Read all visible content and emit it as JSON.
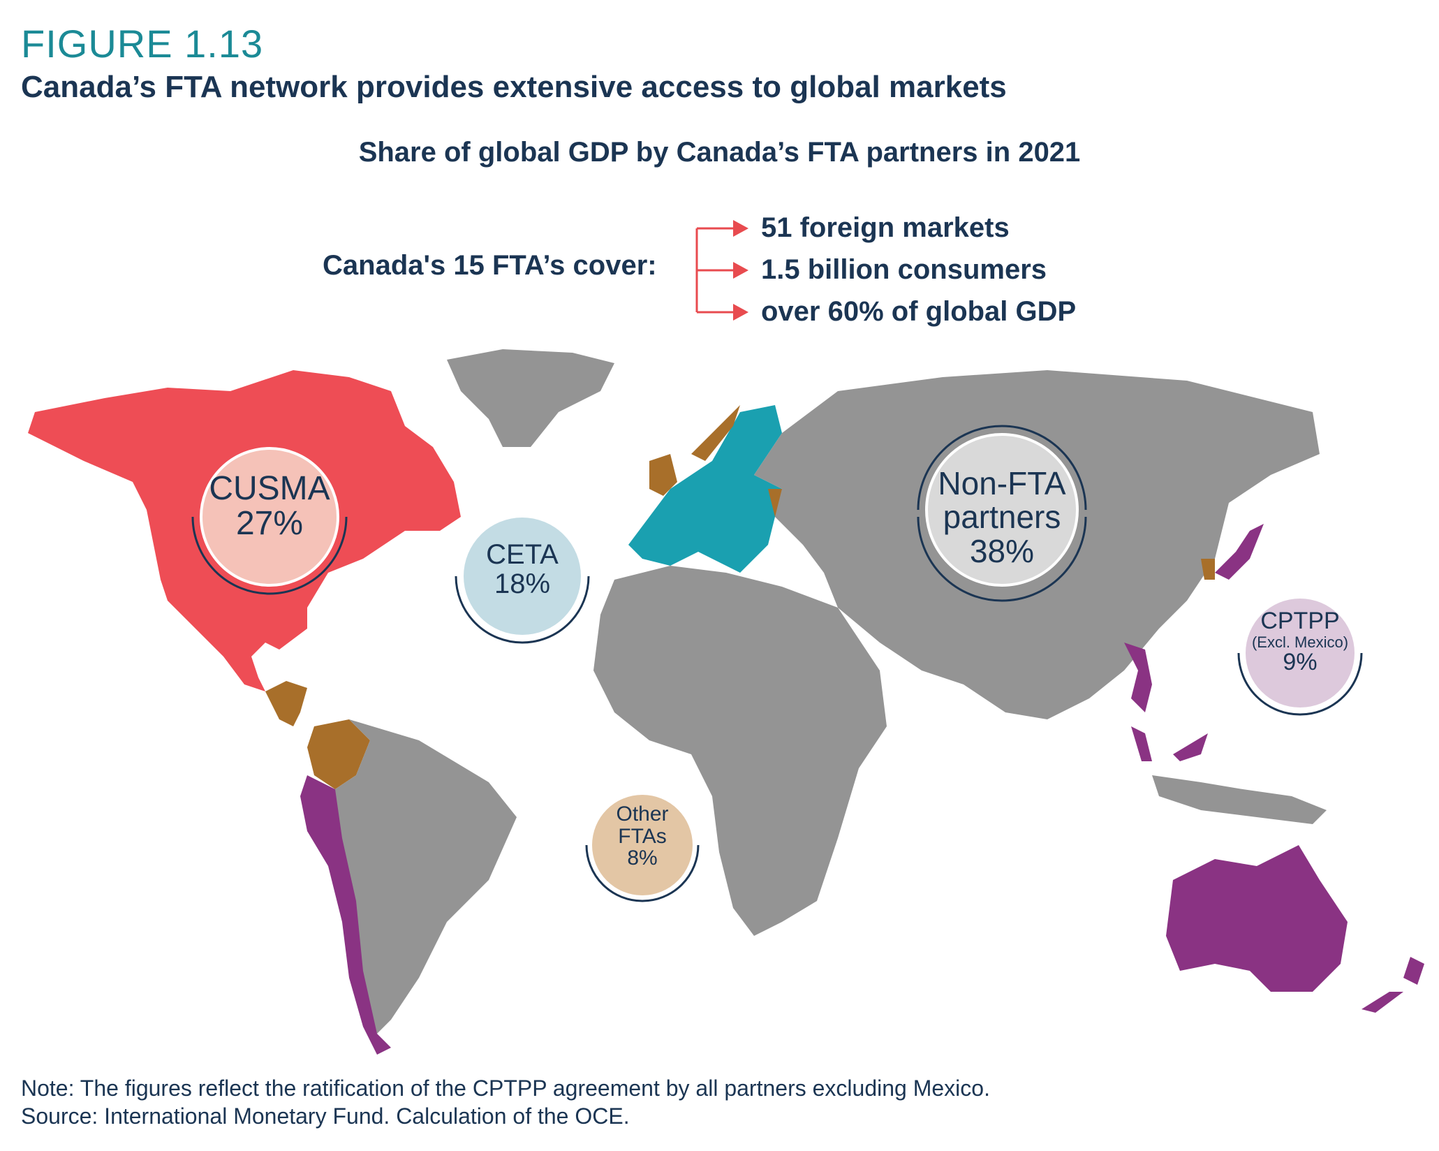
{
  "header": {
    "figure_label": "FIGURE 1.13",
    "title": "Canada’s FTA network provides extensive access to global markets",
    "subtitle": "Share of global GDP by Canada’s FTA partners in 2021"
  },
  "coverage": {
    "label": "Canada's 15 FTA’s cover:",
    "items": [
      "51 foreign markets",
      "1.5 billion consumers",
      "over 60% of global GDP"
    ],
    "arrow_color": "#e84b4f"
  },
  "bubbles": {
    "cusma": {
      "name": "CUSMA",
      "share": "27%",
      "fill": "#f5c2b8"
    },
    "ceta": {
      "name": "CETA",
      "share": "18%",
      "fill": "#c3dce4"
    },
    "non_fta": {
      "name_line1": "Non-FTA",
      "name_line2": "partners",
      "share": "38%",
      "fill": "#d9d9d9"
    },
    "cptpp": {
      "name": "CPTPP",
      "sub": "(Excl. Mexico)",
      "share": "9%",
      "fill": "#ddc9dc"
    },
    "other": {
      "name_line1": "Other",
      "name_line2": "FTAs",
      "share": "8%",
      "fill": "#e3c6a5"
    }
  },
  "map_colors": {
    "cusma": "#ee4d55",
    "ceta": "#1aa0b0",
    "cptpp": "#8a3383",
    "other_fta": "#a86f2a",
    "non_fta": "#949494"
  },
  "footer": {
    "note": "Note: The figures reflect the ratification of the CPTPP agreement by all partners excluding Mexico.",
    "source": "Source: International Monetary Fund. Calculation of the OCE."
  }
}
